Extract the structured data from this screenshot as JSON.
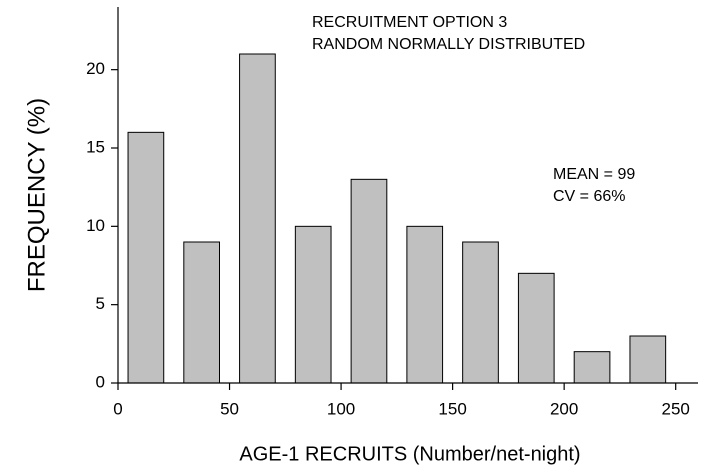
{
  "chart_data": {
    "type": "bar",
    "x": [
      12.5,
      37.5,
      62.5,
      87.5,
      112.5,
      137.5,
      162.5,
      187.5,
      212.5,
      237.5
    ],
    "values": [
      16,
      9,
      21,
      10,
      13,
      10,
      9,
      7,
      2,
      3
    ],
    "color": "#c0c0c0",
    "xlim": [
      0,
      260
    ],
    "xticks": [
      0,
      50,
      100,
      150,
      200,
      250
    ],
    "ylim": [
      0,
      24
    ],
    "yticks": [
      0,
      5,
      10,
      15,
      20
    ],
    "xlabel": "AGE-1 RECRUITS (Number/net-night)",
    "ylabel": "FREQUENCY (%)",
    "annotations": [
      "RECRUITMENT OPTION 3",
      "RANDOM NORMALLY DISTRIBUTED",
      "MEAN = 99",
      "CV = 66%"
    ],
    "grid": false
  }
}
